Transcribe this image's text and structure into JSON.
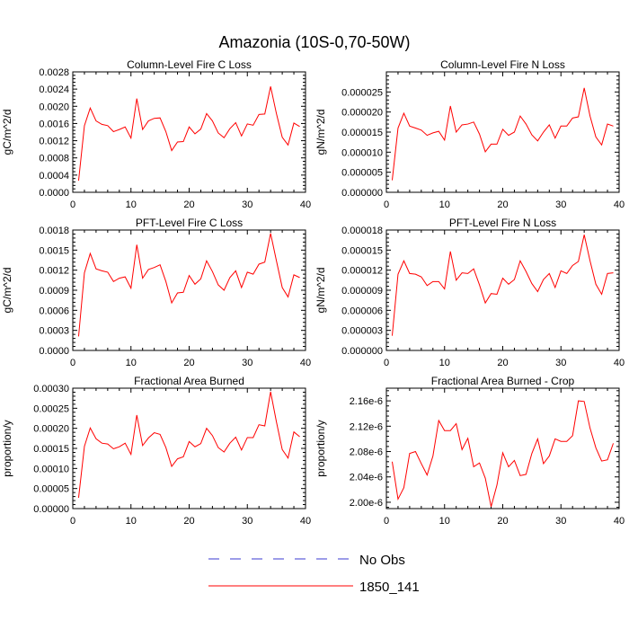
{
  "figure_title": "Amazonia (10S-0,70-50W)",
  "legend": [
    {
      "label": "No Obs",
      "color": "#3a3ad0",
      "style": "dashed"
    },
    {
      "label": "1850_141",
      "color": "#ff0000",
      "style": "solid"
    }
  ],
  "chart_data": [
    {
      "type": "line",
      "title": "Column-Level Fire C Loss",
      "ylabel": "gC/m^2/d",
      "xlim": [
        0,
        40
      ],
      "ylim": [
        0,
        0.0028
      ],
      "xticks": [
        "0",
        "10",
        "20",
        "30",
        "40"
      ],
      "yticks": [
        "0.0000",
        "0.0004",
        "0.0008",
        "0.0012",
        "0.0016",
        "0.0020",
        "0.0024",
        "0.0028"
      ],
      "x": [
        1,
        2,
        3,
        4,
        5,
        6,
        7,
        8,
        9,
        10,
        11,
        12,
        13,
        14,
        15,
        16,
        17,
        18,
        19,
        20,
        21,
        22,
        23,
        24,
        25,
        26,
        27,
        28,
        29,
        30,
        31,
        32,
        33,
        34,
        35,
        36,
        37,
        38,
        39
      ],
      "series": [
        {
          "name": "1850_141",
          "color": "#ff0000",
          "values": [
            0.00027,
            0.00155,
            0.00196,
            0.00166,
            0.00158,
            0.00155,
            0.00141,
            0.00146,
            0.00152,
            0.00126,
            0.00218,
            0.00146,
            0.00166,
            0.00172,
            0.00173,
            0.00141,
            0.00097,
            0.00117,
            0.00118,
            0.00152,
            0.00136,
            0.00147,
            0.00183,
            0.00166,
            0.00138,
            0.00127,
            0.00148,
            0.00162,
            0.00131,
            0.00159,
            0.00156,
            0.00181,
            0.00182,
            0.00246,
            0.00183,
            0.00128,
            0.0011,
            0.00161,
            0.00153
          ]
        }
      ]
    },
    {
      "type": "line",
      "title": "Column-Level Fire N Loss",
      "ylabel": "gN/m^2/d",
      "xlim": [
        0,
        40
      ],
      "ylim": [
        0,
        3e-05
      ],
      "xticks": [
        "0",
        "10",
        "20",
        "30",
        "40"
      ],
      "yticks": [
        "0.000000",
        "0.000005",
        "0.000010",
        "0.000015",
        "0.000020",
        "0.000025"
      ],
      "x": [
        1,
        2,
        3,
        4,
        5,
        6,
        7,
        8,
        9,
        10,
        11,
        12,
        13,
        14,
        15,
        16,
        17,
        18,
        19,
        20,
        21,
        22,
        23,
        24,
        25,
        26,
        27,
        28,
        29,
        30,
        31,
        32,
        33,
        34,
        35,
        36,
        37,
        38,
        39
      ],
      "series": [
        {
          "name": "1850_141",
          "color": "#ff0000",
          "values": [
            3e-06,
            1.6e-05,
            1.97e-05,
            1.65e-05,
            1.6e-05,
            1.55e-05,
            1.42e-05,
            1.48e-05,
            1.52e-05,
            1.3e-05,
            2.15e-05,
            1.5e-05,
            1.68e-05,
            1.7e-05,
            1.75e-05,
            1.45e-05,
            1.01e-05,
            1.2e-05,
            1.2e-05,
            1.57e-05,
            1.42e-05,
            1.5e-05,
            1.9e-05,
            1.7e-05,
            1.43e-05,
            1.28e-05,
            1.5e-05,
            1.68e-05,
            1.35e-05,
            1.65e-05,
            1.65e-05,
            1.85e-05,
            1.88e-05,
            2.6e-05,
            1.9e-05,
            1.38e-05,
            1.18e-05,
            1.7e-05,
            1.65e-05
          ]
        }
      ]
    },
    {
      "type": "line",
      "title": "PFT-Level Fire C Loss",
      "ylabel": "gC/m^2/d",
      "xlim": [
        0,
        40
      ],
      "ylim": [
        0,
        0.0018
      ],
      "xticks": [
        "0",
        "10",
        "20",
        "30",
        "40"
      ],
      "yticks": [
        "0.0000",
        "0.0003",
        "0.0006",
        "0.0009",
        "0.0012",
        "0.0015",
        "0.0018"
      ],
      "x": [
        1,
        2,
        3,
        4,
        5,
        6,
        7,
        8,
        9,
        10,
        11,
        12,
        13,
        14,
        15,
        16,
        17,
        18,
        19,
        20,
        21,
        22,
        23,
        24,
        25,
        26,
        27,
        28,
        29,
        30,
        31,
        32,
        33,
        34,
        35,
        36,
        37,
        38,
        39
      ],
      "series": [
        {
          "name": "1850_141",
          "color": "#ff0000",
          "values": [
            0.00021,
            0.00116,
            0.00145,
            0.00122,
            0.00119,
            0.00117,
            0.00103,
            0.00108,
            0.0011,
            0.00093,
            0.00158,
            0.00108,
            0.00121,
            0.00124,
            0.00128,
            0.00103,
            0.00071,
            0.00086,
            0.00087,
            0.00112,
            0.00099,
            0.00107,
            0.00134,
            0.00118,
            0.00098,
            0.0009,
            0.00109,
            0.00119,
            0.00094,
            0.00117,
            0.00114,
            0.00129,
            0.00132,
            0.00175,
            0.00134,
            0.00094,
            0.0008,
            0.00113,
            0.00109
          ]
        }
      ]
    },
    {
      "type": "line",
      "title": "PFT-Level Fire N Loss",
      "ylabel": "gN/m^2/d",
      "xlim": [
        0,
        40
      ],
      "ylim": [
        0,
        1.8e-05
      ],
      "xticks": [
        "0",
        "10",
        "20",
        "30",
        "40"
      ],
      "yticks": [
        "0.000000",
        "0.000003",
        "0.000006",
        "0.000009",
        "0.000012",
        "0.000015",
        "0.000018"
      ],
      "x": [
        1,
        2,
        3,
        4,
        5,
        6,
        7,
        8,
        9,
        10,
        11,
        12,
        13,
        14,
        15,
        16,
        17,
        18,
        19,
        20,
        21,
        22,
        23,
        24,
        25,
        26,
        27,
        28,
        29,
        30,
        31,
        32,
        33,
        34,
        35,
        36,
        37,
        38,
        39
      ],
      "series": [
        {
          "name": "1850_141",
          "color": "#ff0000",
          "values": [
            2.2e-06,
            1.14e-05,
            1.34e-05,
            1.15e-05,
            1.14e-05,
            1.1e-05,
            9.7e-06,
            1.03e-05,
            1.03e-05,
            9.2e-06,
            1.48e-05,
            1.05e-05,
            1.16e-05,
            1.15e-05,
            1.22e-05,
            9.8e-06,
            7.1e-06,
            8.5e-06,
            8.4e-06,
            1.08e-05,
            9.9e-06,
            1.06e-05,
            1.34e-05,
            1.18e-05,
            1e-05,
            8.8e-06,
            1.06e-05,
            1.15e-05,
            9.4e-06,
            1.19e-05,
            1.15e-05,
            1.27e-05,
            1.33e-05,
            1.73e-05,
            1.34e-05,
            9.9e-06,
            8.4e-06,
            1.15e-05,
            1.16e-05
          ]
        }
      ]
    },
    {
      "type": "line",
      "title": "Fractional Area Burned",
      "ylabel": "proportion/y",
      "xlim": [
        0,
        40
      ],
      "ylim": [
        0,
        0.0003
      ],
      "xticks": [
        "0",
        "10",
        "20",
        "30",
        "40"
      ],
      "yticks": [
        "0.00000",
        "0.00005",
        "0.00010",
        "0.00015",
        "0.00020",
        "0.00025",
        "0.00030"
      ],
      "x": [
        1,
        2,
        3,
        4,
        5,
        6,
        7,
        8,
        9,
        10,
        11,
        12,
        13,
        14,
        15,
        16,
        17,
        18,
        19,
        20,
        21,
        22,
        23,
        24,
        25,
        26,
        27,
        28,
        29,
        30,
        31,
        32,
        33,
        34,
        35,
        36,
        37,
        38,
        39
      ],
      "series": [
        {
          "name": "1850_141",
          "color": "#ff0000",
          "values": [
            2.7e-05,
            0.000155,
            0.000201,
            0.000174,
            0.000163,
            0.000161,
            0.000149,
            0.000154,
            0.000163,
            0.000135,
            0.000233,
            0.000157,
            0.000176,
            0.000189,
            0.000185,
            0.000152,
            0.000105,
            0.000124,
            0.000129,
            0.000167,
            0.000154,
            0.000162,
            0.0002,
            0.000182,
            0.000152,
            0.000141,
            0.000163,
            0.000178,
            0.000146,
            0.000177,
            0.000177,
            0.000209,
            0.000206,
            0.000291,
            0.000216,
            0.000147,
            0.000126,
            0.000191,
            0.000179
          ]
        }
      ]
    },
    {
      "type": "line",
      "title": "Fractional Area Burned - Crop",
      "ylabel": "proportion/y",
      "xlim": [
        0,
        40
      ],
      "ylim": [
        1.99e-06,
        2.18e-06
      ],
      "xticks": [
        "0",
        "10",
        "20",
        "30",
        "40"
      ],
      "yticks": [
        "2.00e-6",
        "2.04e-6",
        "2.08e-6",
        "2.12e-6",
        "2.16e-6"
      ],
      "x": [
        1,
        2,
        3,
        4,
        5,
        6,
        7,
        8,
        9,
        10,
        11,
        12,
        13,
        14,
        15,
        16,
        17,
        18,
        19,
        20,
        21,
        22,
        23,
        24,
        25,
        26,
        27,
        28,
        29,
        30,
        31,
        32,
        33,
        34,
        35,
        36,
        37,
        38,
        39
      ],
      "series": [
        {
          "name": "1850_141",
          "color": "#ff0000",
          "values": [
            2.064e-06,
            2.005e-06,
            2.023e-06,
            2.077e-06,
            2.08e-06,
            2.061e-06,
            2.043e-06,
            2.073e-06,
            2.129e-06,
            2.113e-06,
            2.113e-06,
            2.124e-06,
            2.083e-06,
            2.101e-06,
            2.056e-06,
            2.062e-06,
            2.038e-06,
            1.993e-06,
            2.027e-06,
            2.078e-06,
            2.056e-06,
            2.066e-06,
            2.042e-06,
            2.044e-06,
            2.077e-06,
            2.1e-06,
            2.061e-06,
            2.073e-06,
            2.1e-06,
            2.096e-06,
            2.096e-06,
            2.105e-06,
            2.16e-06,
            2.159e-06,
            2.117e-06,
            2.086e-06,
            2.065e-06,
            2.067e-06,
            2.093e-06
          ]
        }
      ]
    }
  ]
}
